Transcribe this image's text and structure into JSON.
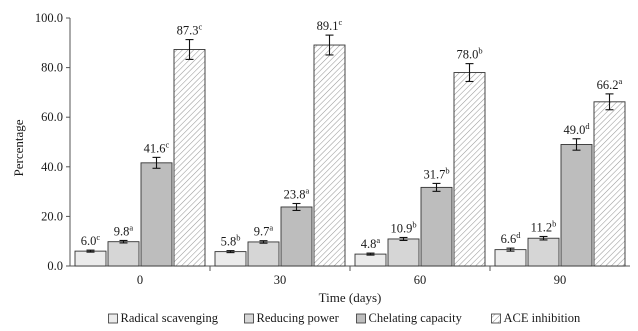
{
  "chart_data": {
    "type": "bar",
    "xlabel": "Time (days)",
    "ylabel": "Percentage",
    "ylim": [
      0,
      100
    ],
    "yticks": [
      "0.0",
      "20.0",
      "40.0",
      "60.0",
      "80.0",
      "100.0"
    ],
    "ytick_values": [
      0,
      20,
      40,
      60,
      80,
      100
    ],
    "categories": [
      "0",
      "30",
      "60",
      "90"
    ],
    "legend_position": "bottom",
    "grid": false,
    "series": [
      {
        "name": "Radical scavenging",
        "fill": "#ebebeb",
        "values": [
          6.0,
          5.8,
          4.8,
          6.6
        ],
        "errors": [
          0.4,
          0.4,
          0.4,
          0.6
        ],
        "labels": [
          "6.0",
          "5.8",
          "4.8",
          "6.6"
        ],
        "letters": [
          "c",
          "b",
          "a",
          "d"
        ]
      },
      {
        "name": "Reducing power",
        "fill": "#d6d6d6",
        "values": [
          9.8,
          9.7,
          10.9,
          11.2
        ],
        "errors": [
          0.5,
          0.5,
          0.6,
          0.7
        ],
        "labels": [
          "9.8",
          "9.7",
          "10.9",
          "11.2"
        ],
        "letters": [
          "a",
          "a",
          "b",
          "b"
        ]
      },
      {
        "name": "Chelating capacity",
        "fill": "#bdbdbd",
        "values": [
          41.6,
          23.8,
          31.7,
          49.0
        ],
        "errors": [
          2.2,
          1.4,
          1.6,
          2.3
        ],
        "labels": [
          "41.6",
          "23.8",
          "31.7",
          "49.0"
        ],
        "letters": [
          "c",
          "a",
          "b",
          "d"
        ]
      },
      {
        "name": "ACE inhibition",
        "fill": "hatch",
        "values": [
          87.3,
          89.1,
          78.0,
          66.2
        ],
        "errors": [
          4.0,
          4.0,
          3.6,
          3.2
        ],
        "labels": [
          "87.3",
          "89.1",
          "78.0",
          "66.2"
        ],
        "letters": [
          "c",
          "c",
          "b",
          "a"
        ]
      }
    ]
  }
}
